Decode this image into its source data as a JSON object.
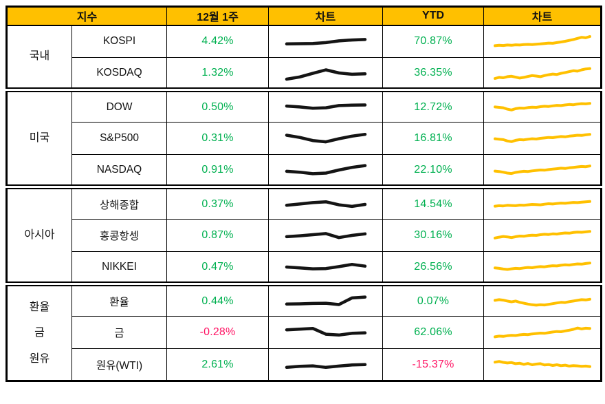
{
  "colors": {
    "header_bg": "#FFC000",
    "positive": "#00B050",
    "negative": "#FF1464",
    "spark_week": "#141414",
    "spark_ytd": "#FFC000"
  },
  "header": {
    "index": "지수",
    "week": "12월 1주",
    "chart1": "차트",
    "ytd": "YTD",
    "chart2": "차트"
  },
  "chart_data": {
    "type": "table",
    "columns": [
      "지수",
      "12월 1주",
      "차트",
      "YTD",
      "차트"
    ],
    "sections": [
      {
        "group": "국내",
        "rows": [
          {
            "name": "KOSPI",
            "week": "4.42%",
            "week_dir": "up",
            "ytd": "70.87%",
            "ytd_dir": "up",
            "spark_week": [
              38,
              39,
              40,
              44,
              52,
              56,
              58
            ],
            "spark_ytd": [
              30,
              32,
              31,
              33,
              32,
              34,
              33,
              35,
              36,
              35,
              37,
              38,
              40,
              42,
              41,
              44,
              47,
              50,
              54,
              58,
              63,
              68,
              66,
              72
            ]
          },
          {
            "name": "KOSDAQ",
            "week": "1.32%",
            "week_dir": "up",
            "ytd": "36.35%",
            "ytd_dir": "up",
            "spark_week": [
              22,
              32,
              48,
              64,
              50,
              44,
              46
            ],
            "spark_ytd": [
              25,
              30,
              28,
              33,
              35,
              31,
              27,
              30,
              34,
              38,
              36,
              33,
              38,
              42,
              45,
              43,
              48,
              52,
              56,
              60,
              58,
              64,
              68,
              70
            ]
          }
        ]
      },
      {
        "group": "미국",
        "rows": [
          {
            "name": "DOW",
            "week": "0.50%",
            "week_dir": "up",
            "ytd": "12.72%",
            "ytd_dir": "up",
            "spark_week": [
              56,
              52,
              46,
              48,
              58,
              60,
              61
            ],
            "spark_ytd": [
              52,
              50,
              48,
              42,
              38,
              44,
              47,
              46,
              49,
              51,
              50,
              53,
              55,
              54,
              57,
              59,
              58,
              61,
              63,
              62,
              65,
              67,
              66,
              68
            ]
          },
          {
            "name": "S&P500",
            "week": "0.31%",
            "week_dir": "up",
            "ytd": "16.81%",
            "ytd_dir": "up",
            "spark_week": [
              64,
              54,
              40,
              34,
              48,
              60,
              68
            ],
            "spark_ytd": [
              48,
              46,
              44,
              38,
              35,
              41,
              44,
              43,
              46,
              48,
              47,
              50,
              52,
              54,
              53,
              56,
              58,
              57,
              60,
              62,
              64,
              63,
              66,
              68
            ]
          },
          {
            "name": "NASDAQ",
            "week": "0.91%",
            "week_dir": "up",
            "ytd": "22.10%",
            "ytd_dir": "up",
            "spark_week": [
              44,
              40,
              33,
              36,
              50,
              62,
              70
            ],
            "spark_ytd": [
              45,
              43,
              40,
              36,
              34,
              39,
              42,
              44,
              43,
              46,
              48,
              50,
              49,
              52,
              54,
              56,
              58,
              57,
              60,
              62,
              64,
              66,
              65,
              68
            ]
          }
        ]
      },
      {
        "group": "아시아",
        "rows": [
          {
            "name": "상해종합",
            "week": "0.37%",
            "week_dir": "up",
            "ytd": "14.54%",
            "ytd_dir": "up",
            "spark_week": [
              46,
              52,
              58,
              62,
              48,
              41,
              50
            ],
            "spark_ytd": [
              42,
              44,
              43,
              46,
              45,
              44,
              47,
              46,
              48,
              50,
              49,
              48,
              51,
              53,
              52,
              54,
              56,
              55,
              57,
              59,
              58,
              60,
              62,
              63
            ]
          },
          {
            "name": "홍콩항셍",
            "week": "0.87%",
            "week_dir": "up",
            "ytd": "30.16%",
            "ytd_dir": "up",
            "spark_week": [
              44,
              48,
              53,
              58,
              40,
              50,
              57
            ],
            "spark_ytd": [
              38,
              42,
              45,
              43,
              40,
              44,
              47,
              46,
              49,
              51,
              50,
              53,
              55,
              54,
              57,
              56,
              59,
              61,
              60,
              63,
              65,
              64,
              66,
              68
            ]
          },
          {
            "name": "NIKKEI",
            "week": "0.47%",
            "week_dir": "up",
            "ytd": "26.56%",
            "ytd_dir": "up",
            "spark_week": [
              50,
              46,
              42,
              43,
              52,
              62,
              54
            ],
            "spark_ytd": [
              46,
              44,
              41,
              39,
              42,
              44,
              43,
              46,
              48,
              47,
              50,
              52,
              51,
              54,
              56,
              55,
              58,
              60,
              59,
              62,
              64,
              63,
              66,
              68
            ]
          }
        ]
      },
      {
        "group": "환율\n금\n원유",
        "rows": [
          {
            "name": "환율",
            "week": "0.44%",
            "week_dir": "up",
            "ytd": "0.07%",
            "ytd_dir": "up",
            "spark_week": [
              38,
              39,
              41,
              42,
              36,
              66,
              70
            ],
            "spark_ytd": [
              55,
              58,
              56,
              52,
              48,
              52,
              46,
              42,
              38,
              35,
              33,
              35,
              34,
              37,
              40,
              43,
              46,
              45,
              49,
              52,
              55,
              58,
              57,
              60
            ]
          },
          {
            "name": "금",
            "week": "-0.28%",
            "week_dir": "down",
            "ytd": "62.06%",
            "ytd_dir": "up",
            "spark_week": [
              62,
              65,
              68,
              42,
              38,
              46,
              48
            ],
            "spark_ytd": [
              30,
              33,
              32,
              35,
              37,
              36,
              39,
              41,
              40,
              43,
              45,
              47,
              46,
              49,
              52,
              54,
              53,
              57,
              60,
              64,
              70,
              66,
              69,
              68
            ]
          },
          {
            "name": "원유(WTI)",
            "week": "2.61%",
            "week_dir": "up",
            "ytd": "-15.37%",
            "ytd_dir": "down",
            "spark_week": [
              38,
              43,
              45,
              38,
              44,
              49,
              51
            ],
            "spark_ytd": [
              62,
              65,
              61,
              58,
              60,
              55,
              57,
              52,
              56,
              50,
              53,
              55,
              49,
              51,
              47,
              50,
              46,
              48,
              44,
              46,
              45,
              43,
              44,
              42
            ]
          }
        ]
      }
    ]
  }
}
